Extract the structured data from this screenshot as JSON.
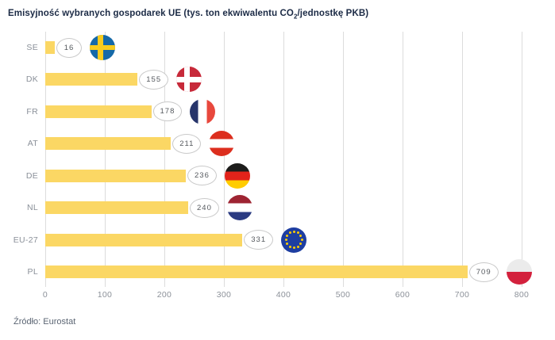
{
  "title": {
    "part1": "Emisyjność wybranych gospodarek UE (tys. ton ekwiwalentu CO",
    "sub": "2",
    "part2": "/jednostkę PKB)"
  },
  "source": "Źródło: Eurostat",
  "chart_data": {
    "type": "bar",
    "orientation": "horizontal",
    "title": "Emisyjność wybranych gospodarek UE (tys. ton ekwiwalentu CO2/jednostkę PKB)",
    "categories": [
      "SE",
      "DK",
      "FR",
      "AT",
      "DE",
      "NL",
      "EU-27",
      "PL"
    ],
    "values": [
      16,
      155,
      178,
      211,
      236,
      240,
      331,
      709
    ],
    "value_labels": [
      "16",
      "155",
      "178",
      "211",
      "236",
      "240",
      "331",
      "709"
    ],
    "xticks": [
      0,
      100,
      200,
      300,
      400,
      500,
      600,
      700,
      800
    ],
    "xlim": [
      0,
      800
    ],
    "grid": "vertical",
    "legend": "none",
    "bar_color": "#FBD764",
    "gridline_color": "#dcdcdc",
    "flags": [
      {
        "name": "sweden-flag-icon",
        "type": "nordic",
        "bg": "#1569A8",
        "cross": "#F9CC1D"
      },
      {
        "name": "denmark-flag-icon",
        "type": "nordic",
        "bg": "#C72A3A",
        "cross": "#FFFFFF"
      },
      {
        "name": "france-flag-icon",
        "type": "vertical",
        "colors": [
          "#27356B",
          "#FFFFFF",
          "#E8483D"
        ]
      },
      {
        "name": "austria-flag-icon",
        "type": "horizontal",
        "colors": [
          "#DC2E1E",
          "#FFFFFF",
          "#DC2E1E"
        ]
      },
      {
        "name": "germany-flag-icon",
        "type": "horizontal",
        "colors": [
          "#1D1D1B",
          "#E2231A",
          "#FFCC00"
        ]
      },
      {
        "name": "netherlands-flag-icon",
        "type": "horizontal",
        "colors": [
          "#9E2432",
          "#FFFFFF",
          "#2B3B82"
        ]
      },
      {
        "name": "eu-flag-icon",
        "type": "stars",
        "bg": "#1E3EA1",
        "star": "#FFCC00"
      },
      {
        "name": "poland-flag-icon",
        "type": "horizontal2",
        "colors": [
          "#EBEBEB",
          "#D3213D"
        ]
      }
    ]
  }
}
